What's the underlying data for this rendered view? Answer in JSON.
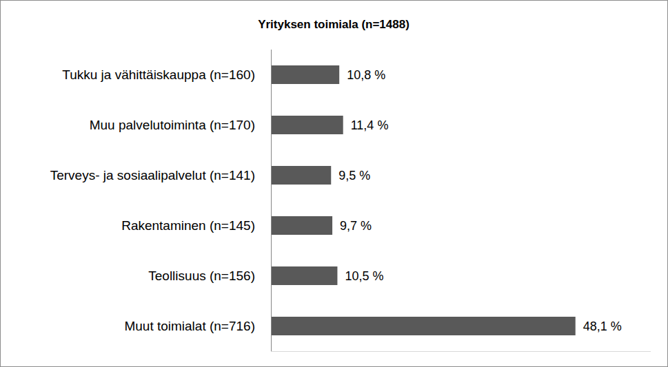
{
  "chart_data": {
    "type": "bar",
    "title": "Yrityksen toimiala (n=1488)",
    "orientation": "horizontal",
    "categories": [
      "Tukku ja vähittäiskauppa (n=160)",
      "Muu palvelutoiminta (n=170)",
      "Terveys- ja sosiaalipalvelut (n=141)",
      "Rakentaminen (n=145)",
      "Teollisuus (n=156)",
      "Muut toimialat (n=716)"
    ],
    "values": [
      10.8,
      11.4,
      9.5,
      9.7,
      10.5,
      48.1
    ],
    "value_labels": [
      "10,8 %",
      "11,4 %",
      "9,5 %",
      "9,7 %",
      "10,5 %",
      "48,1 %"
    ],
    "color": "#595959",
    "xlim": [
      0,
      60
    ],
    "data_labels": true,
    "tick_labels": "y"
  }
}
